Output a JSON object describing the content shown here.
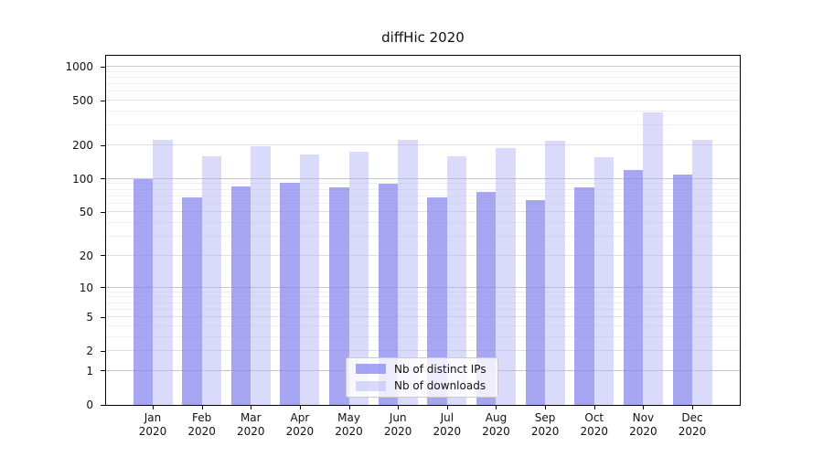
{
  "title": "diffHic 2020",
  "chart_data": {
    "type": "bar",
    "title": "diffHic 2020",
    "categories": [
      "Jan",
      "Feb",
      "Mar",
      "Apr",
      "May",
      "Jun",
      "Jul",
      "Aug",
      "Sep",
      "Oct",
      "Nov",
      "Dec"
    ],
    "x_year_label": "2020",
    "series": [
      {
        "name": "Nb of distinct IPs",
        "fill": "rgba(132,132,238,0.72)",
        "solid_color": "#a6a6f2",
        "values": [
          100,
          68,
          86,
          92,
          84,
          90,
          68,
          76,
          65,
          84,
          121,
          109
        ]
      },
      {
        "name": "Nb of downloads",
        "fill": "rgba(173,173,245,0.45)",
        "solid_color": "#dadaf8",
        "values": [
          225,
          160,
          195,
          166,
          175,
          225,
          160,
          190,
          218,
          157,
          395,
          222
        ]
      }
    ],
    "yscale": "log1p",
    "yticks": [
      0,
      1,
      2,
      5,
      10,
      20,
      50,
      100,
      200,
      500,
      1000
    ],
    "ytick_labels": [
      "0",
      "1",
      "2",
      "5",
      "10",
      "20",
      "50",
      "100",
      "200",
      "500",
      "1000"
    ],
    "ylim": [
      0,
      1250
    ],
    "grid": true,
    "grid_colors": {
      "decade": "#c6c6c6",
      "sub": "#e0e0e0",
      "minor": "#efefef"
    },
    "spine_color": "#000000",
    "legend_position": "lower center"
  },
  "legend": {
    "items": [
      {
        "label": "Nb of distinct IPs"
      },
      {
        "label": "Nb of downloads"
      }
    ]
  }
}
